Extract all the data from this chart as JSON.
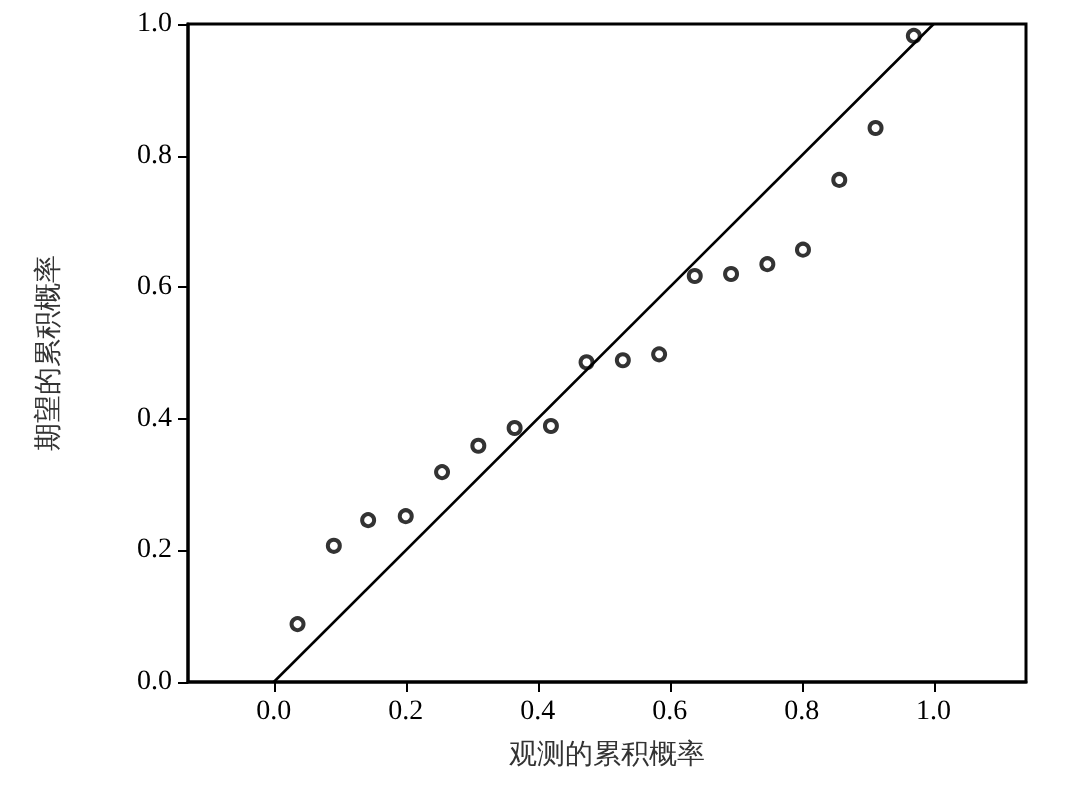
{
  "chart_data": {
    "type": "scatter",
    "xlabel": "观测的累积概率",
    "ylabel": "期望的累积概率",
    "xlim": [
      -0.13,
      1.14
    ],
    "ylim": [
      0,
      1
    ],
    "xticks": [
      {
        "value": 0,
        "label": "0.0"
      },
      {
        "value": 0.2,
        "label": "0.2"
      },
      {
        "value": 0.4,
        "label": "0.4"
      },
      {
        "value": 0.6,
        "label": "0.6"
      },
      {
        "value": 0.8,
        "label": "0.8"
      },
      {
        "value": 1,
        "label": "1.0"
      }
    ],
    "yticks": [
      {
        "value": 0,
        "label": "0.0"
      },
      {
        "value": 0.2,
        "label": "0.2"
      },
      {
        "value": 0.4,
        "label": "0.4"
      },
      {
        "value": 0.6,
        "label": "0.6"
      },
      {
        "value": 0.8,
        "label": "0.8"
      },
      {
        "value": 1,
        "label": "1.0"
      }
    ],
    "grid": false,
    "marker": "circle",
    "series": [
      {
        "color": "#000000",
        "x": [
          0.036,
          0.091,
          0.143,
          0.2,
          0.255,
          0.31,
          0.365,
          0.42,
          0.474,
          0.529,
          0.584,
          0.638,
          0.693,
          0.748,
          0.802,
          0.857,
          0.912,
          0.97
        ],
        "values": [
          0.088,
          0.207,
          0.246,
          0.252,
          0.319,
          0.359,
          0.386,
          0.389,
          0.486,
          0.489,
          0.498,
          0.617,
          0.62,
          0.635,
          0.657,
          0.763,
          0.842,
          0.982
        ]
      },
      {
        "type": "line",
        "color": "#000000",
        "marker": "none",
        "line_style": "solid",
        "x": [
          0,
          1
        ],
        "values": [
          0,
          1
        ]
      }
    ]
  }
}
